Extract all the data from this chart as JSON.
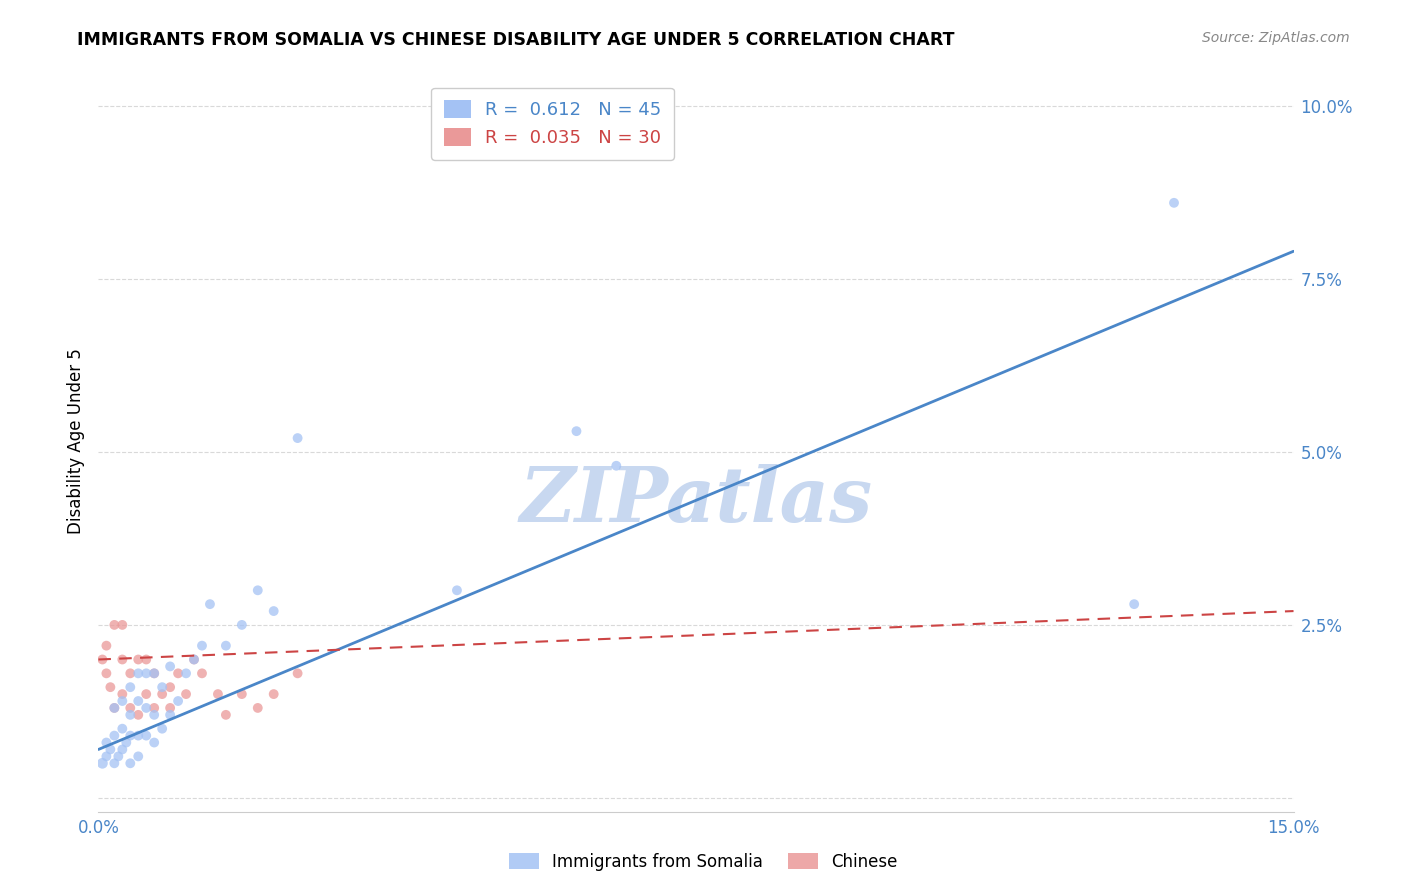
{
  "title": "IMMIGRANTS FROM SOMALIA VS CHINESE DISABILITY AGE UNDER 5 CORRELATION CHART",
  "source": "Source: ZipAtlas.com",
  "ylabel": "Disability Age Under 5",
  "xlim": [
    0.0,
    0.15
  ],
  "ylim": [
    -0.002,
    0.105
  ],
  "xticks": [
    0.0,
    0.025,
    0.05,
    0.075,
    0.1,
    0.125,
    0.15
  ],
  "yticks": [
    0.0,
    0.025,
    0.05,
    0.075,
    0.1
  ],
  "somalia_R": 0.612,
  "somalia_N": 45,
  "chinese_R": 0.035,
  "chinese_N": 30,
  "somalia_color": "#a4c2f4",
  "chinese_color": "#ea9999",
  "somalia_line_color": "#4a86c8",
  "chinese_line_color": "#cc4444",
  "watermark": "ZIPatlas",
  "watermark_color": "#c8d8f0",
  "background_color": "#ffffff",
  "grid_color": "#d9d9d9",
  "tick_color": "#4a86c8",
  "somalia_line_x0": 0.0,
  "somalia_line_y0": 0.007,
  "somalia_line_x1": 0.15,
  "somalia_line_y1": 0.079,
  "chinese_line_x0": 0.0,
  "chinese_line_y0": 0.02,
  "chinese_line_x1": 0.15,
  "chinese_line_y1": 0.027,
  "somalia_scatter_x": [
    0.0005,
    0.001,
    0.001,
    0.0015,
    0.002,
    0.002,
    0.002,
    0.0025,
    0.003,
    0.003,
    0.003,
    0.0035,
    0.004,
    0.004,
    0.004,
    0.004,
    0.005,
    0.005,
    0.005,
    0.005,
    0.006,
    0.006,
    0.006,
    0.007,
    0.007,
    0.007,
    0.008,
    0.008,
    0.009,
    0.009,
    0.01,
    0.011,
    0.012,
    0.013,
    0.014,
    0.016,
    0.018,
    0.02,
    0.022,
    0.025,
    0.045,
    0.06,
    0.065,
    0.13,
    0.135
  ],
  "somalia_scatter_y": [
    0.005,
    0.006,
    0.008,
    0.007,
    0.005,
    0.009,
    0.013,
    0.006,
    0.007,
    0.01,
    0.014,
    0.008,
    0.005,
    0.009,
    0.012,
    0.016,
    0.006,
    0.009,
    0.014,
    0.018,
    0.009,
    0.013,
    0.018,
    0.008,
    0.012,
    0.018,
    0.01,
    0.016,
    0.012,
    0.019,
    0.014,
    0.018,
    0.02,
    0.022,
    0.028,
    0.022,
    0.025,
    0.03,
    0.027,
    0.052,
    0.03,
    0.053,
    0.048,
    0.028,
    0.086
  ],
  "somalia_scatter_size": [
    60,
    50,
    50,
    50,
    50,
    50,
    50,
    50,
    50,
    50,
    50,
    50,
    50,
    50,
    50,
    50,
    50,
    50,
    50,
    50,
    50,
    50,
    50,
    50,
    50,
    50,
    50,
    50,
    50,
    50,
    50,
    50,
    50,
    50,
    50,
    50,
    50,
    50,
    50,
    50,
    50,
    50,
    50,
    50,
    50
  ],
  "chinese_scatter_x": [
    0.0005,
    0.001,
    0.001,
    0.0015,
    0.002,
    0.002,
    0.003,
    0.003,
    0.003,
    0.004,
    0.004,
    0.005,
    0.005,
    0.006,
    0.006,
    0.007,
    0.007,
    0.008,
    0.009,
    0.009,
    0.01,
    0.011,
    0.012,
    0.013,
    0.015,
    0.016,
    0.018,
    0.02,
    0.022,
    0.025
  ],
  "chinese_scatter_y": [
    0.02,
    0.018,
    0.022,
    0.016,
    0.025,
    0.013,
    0.015,
    0.02,
    0.025,
    0.013,
    0.018,
    0.012,
    0.02,
    0.015,
    0.02,
    0.013,
    0.018,
    0.015,
    0.013,
    0.016,
    0.018,
    0.015,
    0.02,
    0.018,
    0.015,
    0.012,
    0.015,
    0.013,
    0.015,
    0.018
  ],
  "chinese_scatter_size": [
    50,
    50,
    50,
    50,
    50,
    50,
    50,
    50,
    50,
    50,
    50,
    50,
    50,
    50,
    50,
    50,
    50,
    50,
    50,
    50,
    50,
    50,
    50,
    50,
    50,
    50,
    50,
    50,
    50,
    50
  ]
}
